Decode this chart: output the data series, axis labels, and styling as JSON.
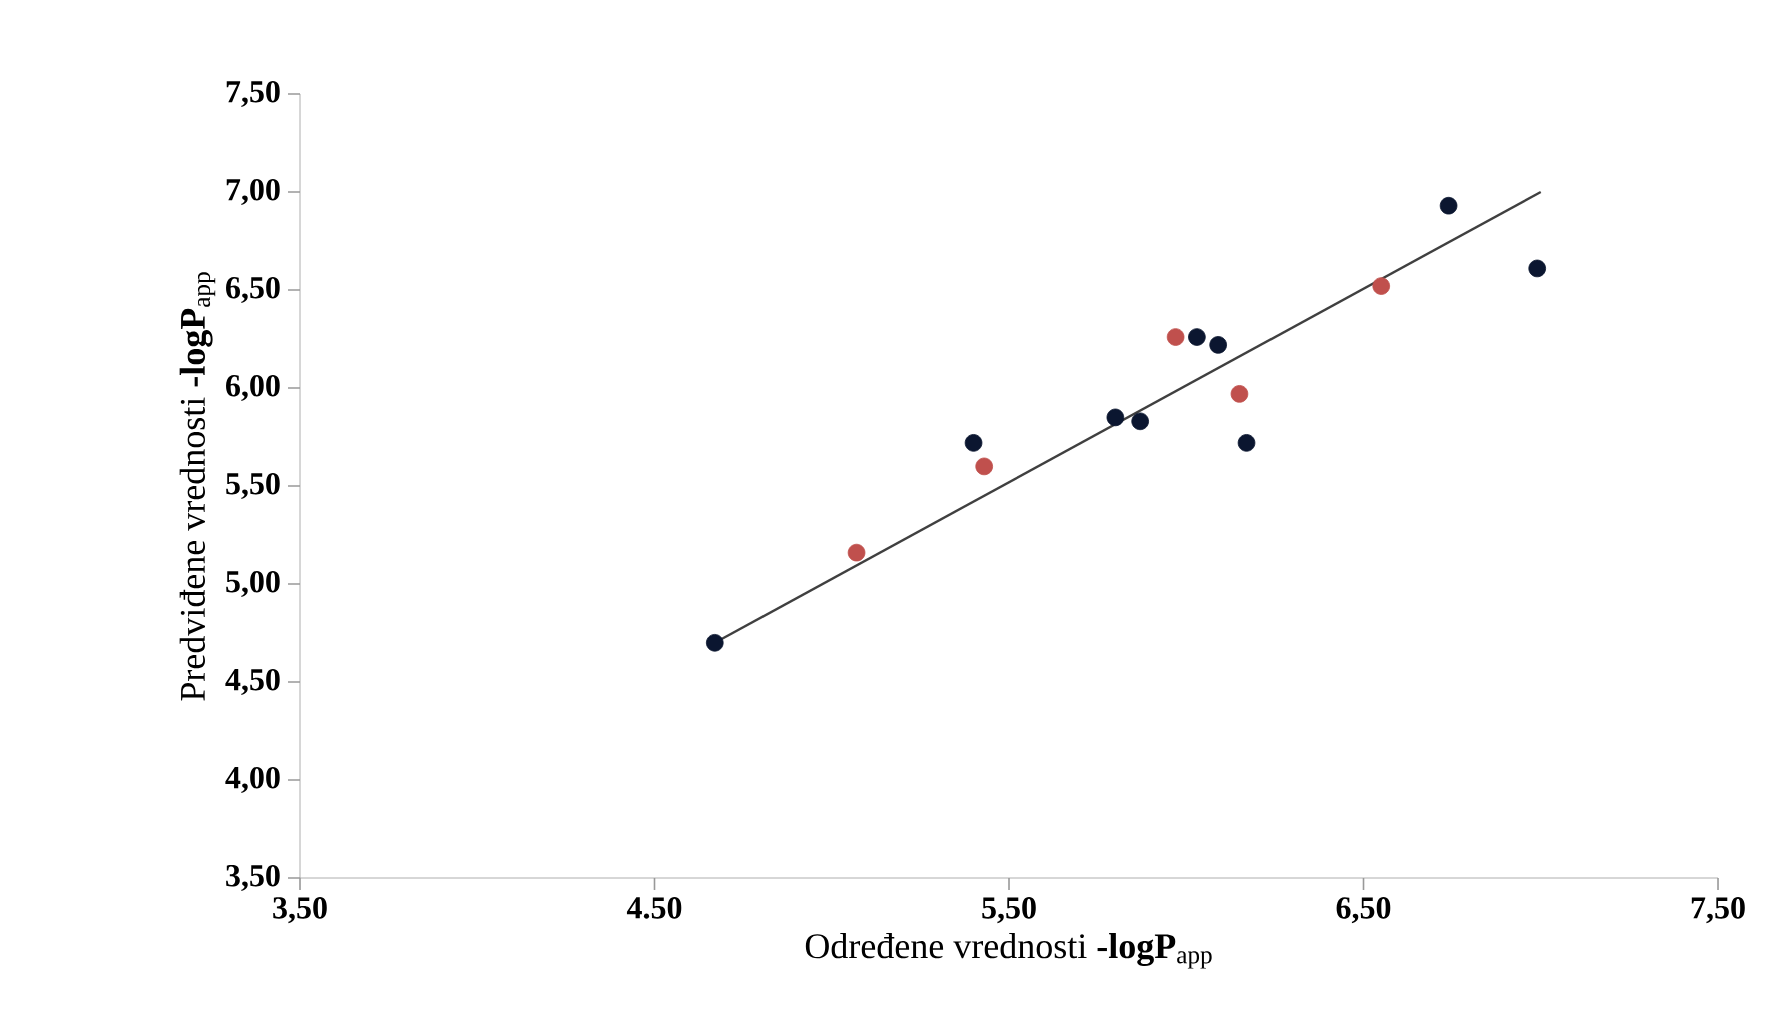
{
  "chart_data": {
    "type": "scatter",
    "xlabel": "Određene vrednosti  **-logP**$_{app}$",
    "ylabel": "Predviđene vrednosti  **-logP**$_{app}$",
    "xlim": [
      3.5,
      7.5
    ],
    "xticks": [
      {
        "value": 3.5,
        "label": "3,50"
      },
      {
        "value": 4.5,
        "label": "4.50"
      },
      {
        "value": 5.5,
        "label": "5,50"
      },
      {
        "value": 6.5,
        "label": "6,50"
      },
      {
        "value": 7.5,
        "label": "7,50"
      }
    ],
    "ylim": [
      3.5,
      7.5
    ],
    "yticks": [
      {
        "value": 3.5,
        "label": "3,50"
      },
      {
        "value": 4.0,
        "label": "4,00"
      },
      {
        "value": 4.5,
        "label": "4,50"
      },
      {
        "value": 5.0,
        "label": "5,00"
      },
      {
        "value": 5.5,
        "label": "5,50"
      },
      {
        "value": 6.0,
        "label": "6,00"
      },
      {
        "value": 6.5,
        "label": "6,50"
      },
      {
        "value": 7.0,
        "label": "7,00"
      },
      {
        "value": 7.5,
        "label": "7,50"
      }
    ],
    "grid": false,
    "series": [
      {
        "type": "line",
        "marker": "none",
        "color": "#404040",
        "x": [
          4.67,
          7.0
        ],
        "values": [
          4.7,
          7.0
        ]
      },
      {
        "marker": "circle",
        "color": "#0b1630",
        "x": [
          4.67,
          5.4,
          5.8,
          5.87,
          6.03,
          6.09,
          6.17,
          6.74,
          6.99
        ],
        "values": [
          4.7,
          5.72,
          5.85,
          5.83,
          6.26,
          6.22,
          5.72,
          6.93,
          6.61
        ]
      },
      {
        "marker": "circle",
        "color": "#c0504d",
        "x": [
          5.07,
          5.43,
          5.97,
          6.15,
          6.55
        ],
        "values": [
          5.16,
          5.6,
          6.26,
          5.97,
          6.52
        ]
      }
    ]
  }
}
